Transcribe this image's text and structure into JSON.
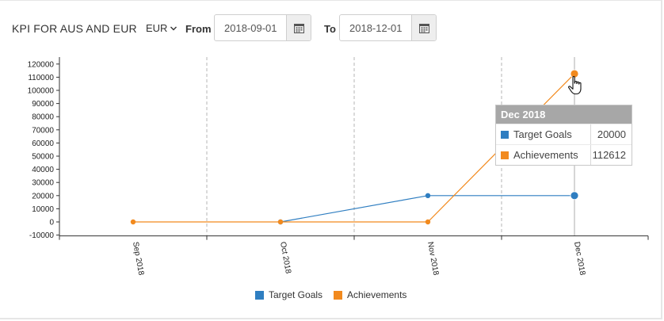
{
  "header": {
    "title": "KPI FOR AUS AND EUR",
    "currency": "EUR",
    "from_label": "From",
    "from_value": "2018-09-01",
    "to_label": "To",
    "to_value": "2018-12-01"
  },
  "colors": {
    "target": "#2f7ec1",
    "achievements": "#f28a1e",
    "grid": "#b5b5b5",
    "axis": "#333333"
  },
  "icons": [
    "chevron-down-icon",
    "calendar-icon",
    "hand-pointer-icon"
  ],
  "tooltip": {
    "title": "Dec 2018",
    "rows": [
      {
        "name": "Target Goals",
        "value": "20000"
      },
      {
        "name": "Achievements",
        "value": "112612"
      }
    ]
  },
  "legend": {
    "items": [
      {
        "label": "Target Goals"
      },
      {
        "label": "Achievements"
      }
    ]
  },
  "chart_data": {
    "type": "line",
    "categories": [
      "Sep 2018",
      "Oct 2018",
      "Nov 2018",
      "Dec 2018"
    ],
    "series": [
      {
        "name": "Target Goals",
        "values": [
          null,
          0,
          20000,
          20000
        ]
      },
      {
        "name": "Achievements",
        "values": [
          0,
          0,
          0,
          112612
        ]
      }
    ],
    "yticks": [
      "-10000",
      "0",
      "10000",
      "20000",
      "30000",
      "40000",
      "50000",
      "60000",
      "70000",
      "80000",
      "90000",
      "100000",
      "110000",
      "120000"
    ],
    "ylim": [
      -10000,
      120000
    ],
    "grid": "vertical dashed",
    "legend": "bottom",
    "highlighted_category": "Dec 2018"
  }
}
